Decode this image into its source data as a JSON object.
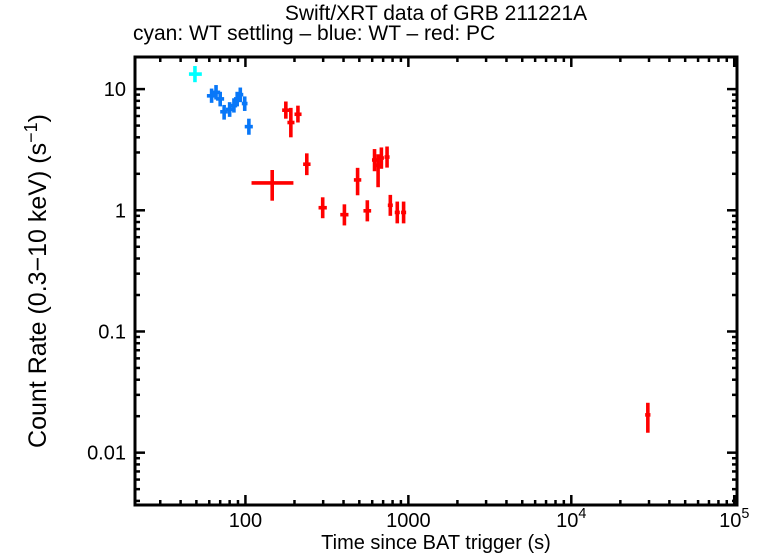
{
  "figure": {
    "title": "Swift/XRT data of GRB 211221A",
    "subtitle": "cyan: WT settling – blue: WT – red: PC"
  },
  "chart_data": {
    "type": "scatter",
    "title": "Swift/XRT data of GRB 211221A",
    "subtitle": "cyan: WT settling – blue: WT – red: PC",
    "xlabel": "Time since BAT trigger (s)",
    "ylabel": "Count Rate (0.3−10 keV) (s⁻¹)",
    "ylabel_parts": [
      {
        "t": "Count Rate (0.3−10 keV) (s"
      },
      {
        "t": "−1",
        "sup": true
      },
      {
        "t": ")"
      }
    ],
    "xscale": "log",
    "yscale": "log",
    "xlim": [
      21,
      104000
    ],
    "ylim": [
      0.0037,
      18.4
    ],
    "grid": false,
    "axis_color": "#000000",
    "x_ticks": [
      {
        "v": 100,
        "label": "100"
      },
      {
        "v": 1000,
        "label": "1000"
      },
      {
        "v": 10000,
        "label": "10",
        "sup": "4"
      },
      {
        "v": 100000,
        "label": "10",
        "sup": "5"
      }
    ],
    "y_ticks": [
      {
        "v": 10,
        "label": "10"
      },
      {
        "v": 1,
        "label": "1"
      },
      {
        "v": 0.1,
        "label": "0.1"
      },
      {
        "v": 0.01,
        "label": "0.01"
      }
    ],
    "series": [
      {
        "name": "WT settling",
        "color": "#00ffff",
        "points": [
          {
            "t": 49,
            "t_lo": 45,
            "t_hi": 54,
            "rate": 13.3,
            "rate_lo": 11.4,
            "rate_hi": 15.5
          }
        ]
      },
      {
        "name": "WT",
        "color": "#0877f8",
        "points": [
          {
            "t": 62,
            "t_lo": 58,
            "t_hi": 66,
            "rate": 8.8,
            "rate_lo": 7.7,
            "rate_hi": 10.1
          },
          {
            "t": 66,
            "t_lo": 62,
            "t_hi": 70,
            "rate": 9.4,
            "rate_lo": 8.2,
            "rate_hi": 10.8
          },
          {
            "t": 70,
            "t_lo": 66,
            "t_hi": 74,
            "rate": 8.3,
            "rate_lo": 7.2,
            "rate_hi": 9.5
          },
          {
            "t": 74,
            "t_lo": 70,
            "t_hi": 78,
            "rate": 6.5,
            "rate_lo": 5.6,
            "rate_hi": 7.4
          },
          {
            "t": 80,
            "t_lo": 76,
            "t_hi": 84,
            "rate": 6.8,
            "rate_lo": 5.9,
            "rate_hi": 7.8
          },
          {
            "t": 85,
            "t_lo": 81,
            "t_hi": 89,
            "rate": 7.3,
            "rate_lo": 6.4,
            "rate_hi": 8.4
          },
          {
            "t": 89,
            "t_lo": 85,
            "t_hi": 93,
            "rate": 8.3,
            "rate_lo": 7.2,
            "rate_hi": 9.5
          },
          {
            "t": 93,
            "t_lo": 89,
            "t_hi": 97,
            "rate": 9.0,
            "rate_lo": 7.8,
            "rate_hi": 10.3
          },
          {
            "t": 99,
            "t_lo": 95,
            "t_hi": 103,
            "rate": 7.6,
            "rate_lo": 6.6,
            "rate_hi": 8.7
          },
          {
            "t": 105,
            "t_lo": 99,
            "t_hi": 111,
            "rate": 4.9,
            "rate_lo": 4.2,
            "rate_hi": 5.7
          }
        ]
      },
      {
        "name": "PC",
        "color": "#ff0000",
        "points": [
          {
            "t": 146,
            "t_lo": 109,
            "t_hi": 197,
            "rate": 1.68,
            "rate_lo": 1.2,
            "rate_hi": 2.15
          },
          {
            "t": 177,
            "t_lo": 168,
            "t_hi": 187,
            "rate": 6.7,
            "rate_lo": 5.7,
            "rate_hi": 7.9
          },
          {
            "t": 190,
            "t_lo": 181,
            "t_hi": 200,
            "rate": 5.3,
            "rate_lo": 4.0,
            "rate_hi": 7.0
          },
          {
            "t": 210,
            "t_lo": 200,
            "t_hi": 221,
            "rate": 6.2,
            "rate_lo": 5.3,
            "rate_hi": 7.3
          },
          {
            "t": 238,
            "t_lo": 226,
            "t_hi": 251,
            "rate": 2.4,
            "rate_lo": 1.95,
            "rate_hi": 2.95
          },
          {
            "t": 298,
            "t_lo": 281,
            "t_hi": 316,
            "rate": 1.05,
            "rate_lo": 0.86,
            "rate_hi": 1.28
          },
          {
            "t": 405,
            "t_lo": 382,
            "t_hi": 429,
            "rate": 0.92,
            "rate_lo": 0.75,
            "rate_hi": 1.12
          },
          {
            "t": 488,
            "t_lo": 463,
            "t_hi": 514,
            "rate": 1.78,
            "rate_lo": 1.33,
            "rate_hi": 2.24
          },
          {
            "t": 560,
            "t_lo": 530,
            "t_hi": 591,
            "rate": 0.99,
            "rate_lo": 0.81,
            "rate_hi": 1.21
          },
          {
            "t": 620,
            "t_lo": 598,
            "t_hi": 643,
            "rate": 2.6,
            "rate_lo": 2.1,
            "rate_hi": 3.2
          },
          {
            "t": 652,
            "t_lo": 629,
            "t_hi": 676,
            "rate": 2.35,
            "rate_lo": 1.55,
            "rate_hi": 2.9
          },
          {
            "t": 683,
            "t_lo": 659,
            "t_hi": 708,
            "rate": 2.7,
            "rate_lo": 2.2,
            "rate_hi": 3.3
          },
          {
            "t": 740,
            "t_lo": 714,
            "t_hi": 767,
            "rate": 2.75,
            "rate_lo": 2.25,
            "rate_hi": 3.36
          },
          {
            "t": 775,
            "t_lo": 748,
            "t_hi": 803,
            "rate": 1.1,
            "rate_lo": 0.9,
            "rate_hi": 1.34
          },
          {
            "t": 855,
            "t_lo": 825,
            "t_hi": 886,
            "rate": 0.96,
            "rate_lo": 0.78,
            "rate_hi": 1.18
          },
          {
            "t": 935,
            "t_lo": 902,
            "t_hi": 969,
            "rate": 0.96,
            "rate_lo": 0.78,
            "rate_hi": 1.18
          },
          {
            "t": 29500,
            "t_lo": 28400,
            "t_hi": 30600,
            "rate": 0.0205,
            "rate_lo": 0.0146,
            "rate_hi": 0.0258
          }
        ]
      }
    ]
  }
}
